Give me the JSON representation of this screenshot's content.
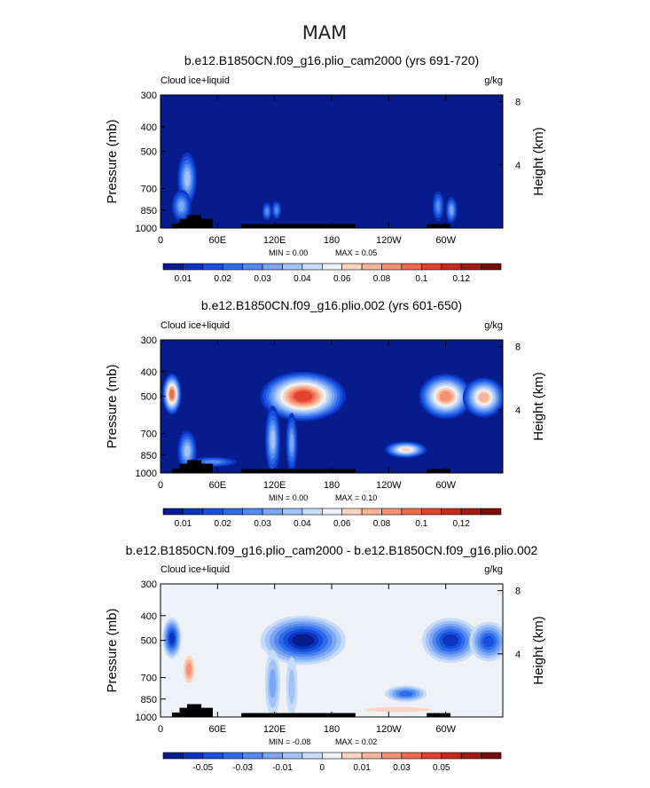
{
  "figure": {
    "title": "MAM"
  },
  "axes": {
    "ylabel_left": "Pressure (mb)",
    "ylabel_right": "Height (km)",
    "pressure_ticks": [
      300,
      400,
      500,
      700,
      850,
      1000
    ],
    "height_ticks": [
      8,
      4
    ],
    "lon_tick_labels": [
      "0",
      "60E",
      "120E",
      "180",
      "120W",
      "60W"
    ],
    "lon_tick_values": [
      0,
      60,
      120,
      180,
      240,
      300
    ],
    "xlim": [
      0,
      360
    ],
    "ylim": [
      1000,
      300
    ]
  },
  "chart_data": [
    {
      "type": "heatmap",
      "title": "b.e12.B1850CN.f09_g16.plio_cam2000 (yrs 691-720)",
      "field_label": "Cloud ice+liquid",
      "units": "g/kg",
      "stats": {
        "min_label": "MIN =",
        "min": "0.00",
        "max_label": "MAX =",
        "max": "0.05"
      },
      "colorbar": {
        "labels": [
          "0.01",
          "0.02",
          "0.03",
          "0.04",
          "0.06",
          "0.08",
          "0.1",
          "0.12"
        ],
        "levels": [
          0.005,
          0.01,
          0.015,
          0.02,
          0.025,
          0.03,
          0.035,
          0.04,
          0.05,
          0.06,
          0.07,
          0.08,
          0.09,
          0.1,
          0.11,
          0.12,
          0.13
        ],
        "colors": [
          "#061c8c",
          "#0a33bf",
          "#1750dc",
          "#2f6be8",
          "#5389f0",
          "#7aa6f4",
          "#a2c3f8",
          "#c8dcfa",
          "#eef2f6",
          "#fbd5c2",
          "#f9b39a",
          "#f59172",
          "#ee6a4e",
          "#e1432f",
          "#c62a1e",
          "#a11a14",
          "#7a0c0a"
        ]
      },
      "features": [
        {
          "lon": 28,
          "p": 640,
          "value": 0.03,
          "width": 10,
          "depth": 150
        },
        {
          "lon": 22,
          "p": 820,
          "value": 0.025,
          "width": 10,
          "depth": 120
        },
        {
          "lon": 112,
          "p": 860,
          "value": 0.02,
          "width": 5,
          "depth": 70
        },
        {
          "lon": 122,
          "p": 850,
          "value": 0.02,
          "width": 5,
          "depth": 70
        },
        {
          "lon": 292,
          "p": 820,
          "value": 0.022,
          "width": 6,
          "depth": 110
        },
        {
          "lon": 306,
          "p": 850,
          "value": 0.025,
          "width": 6,
          "depth": 100
        }
      ]
    },
    {
      "type": "heatmap",
      "title": "b.e12.B1850CN.f09_g16.plio.002 (yrs 601-650)",
      "field_label": "Cloud ice+liquid",
      "units": "g/kg",
      "stats": {
        "min_label": "MIN =",
        "min": "0.00",
        "max_label": "MAX =",
        "max": "0.10"
      },
      "colorbar": {
        "labels": [
          "0.01",
          "0.02",
          "0.03",
          "0.04",
          "0.06",
          "0.08",
          "0.1",
          "0.12"
        ],
        "levels": [
          0.005,
          0.01,
          0.015,
          0.02,
          0.025,
          0.03,
          0.035,
          0.04,
          0.05,
          0.06,
          0.07,
          0.08,
          0.09,
          0.1,
          0.11,
          0.12,
          0.13
        ],
        "colors": [
          "#061c8c",
          "#0a33bf",
          "#1750dc",
          "#2f6be8",
          "#5389f0",
          "#7aa6f4",
          "#a2c3f8",
          "#c8dcfa",
          "#eef2f6",
          "#fbd5c2",
          "#f9b39a",
          "#f59172",
          "#ee6a4e",
          "#e1432f",
          "#c62a1e",
          "#a11a14",
          "#7a0c0a"
        ]
      },
      "features": [
        {
          "lon": 150,
          "p": 500,
          "value": 0.09,
          "width": 45,
          "depth": 110
        },
        {
          "lon": 12,
          "p": 490,
          "value": 0.08,
          "width": 10,
          "depth": 90
        },
        {
          "lon": 300,
          "p": 500,
          "value": 0.075,
          "width": 28,
          "depth": 100
        },
        {
          "lon": 340,
          "p": 505,
          "value": 0.06,
          "width": 22,
          "depth": 90
        },
        {
          "lon": 258,
          "p": 810,
          "value": 0.05,
          "width": 22,
          "depth": 60
        },
        {
          "lon": 28,
          "p": 820,
          "value": 0.03,
          "width": 10,
          "depth": 150
        },
        {
          "lon": 118,
          "p": 740,
          "value": 0.03,
          "width": 8,
          "depth": 220
        },
        {
          "lon": 138,
          "p": 760,
          "value": 0.025,
          "width": 6,
          "depth": 200
        },
        {
          "lon": 55,
          "p": 905,
          "value": 0.02,
          "width": 25,
          "depth": 40
        }
      ]
    },
    {
      "type": "heatmap",
      "title": "b.e12.B1850CN.f09_g16.plio_cam2000 - b.e12.B1850CN.f09_g16.plio.002",
      "field_label": "Cloud ice+liquid",
      "units": "g/kg",
      "stats": {
        "min_label": "MIN =",
        "min": "-0.08",
        "max_label": "MAX =",
        "max": "0.02"
      },
      "colorbar": {
        "labels": [
          "-0.05",
          "-0.03",
          "-0.01",
          "0",
          "0.01",
          "0.03",
          "0.05"
        ],
        "levels": [
          -0.07,
          -0.06,
          -0.05,
          -0.04,
          -0.03,
          -0.02,
          -0.01,
          -0.005,
          0.005,
          0.01,
          0.02,
          0.03,
          0.04,
          0.05,
          0.06,
          0.07,
          0.08
        ],
        "colors": [
          "#061c8c",
          "#0a33bf",
          "#1750dc",
          "#2f6be8",
          "#5389f0",
          "#7aa6f4",
          "#a2c3f8",
          "#c8dcfa",
          "#eef2f6",
          "#fbd5c2",
          "#f9b39a",
          "#f59172",
          "#ee6a4e",
          "#e1432f",
          "#c62a1e",
          "#a11a14",
          "#7a0c0a"
        ]
      },
      "features": [
        {
          "lon": 150,
          "p": 500,
          "value": -0.07,
          "width": 45,
          "depth": 110
        },
        {
          "lon": 12,
          "p": 490,
          "value": -0.06,
          "width": 10,
          "depth": 90
        },
        {
          "lon": 305,
          "p": 500,
          "value": -0.065,
          "width": 30,
          "depth": 100
        },
        {
          "lon": 345,
          "p": 505,
          "value": -0.05,
          "width": 20,
          "depth": 90
        },
        {
          "lon": 258,
          "p": 810,
          "value": -0.04,
          "width": 22,
          "depth": 60
        },
        {
          "lon": 118,
          "p": 740,
          "value": -0.02,
          "width": 8,
          "depth": 220
        },
        {
          "lon": 138,
          "p": 760,
          "value": -0.015,
          "width": 6,
          "depth": 200
        },
        {
          "lon": 30,
          "p": 650,
          "value": 0.02,
          "width": 6,
          "depth": 80
        },
        {
          "lon": 250,
          "p": 935,
          "value": 0.005,
          "width": 35,
          "depth": 20
        }
      ]
    }
  ]
}
